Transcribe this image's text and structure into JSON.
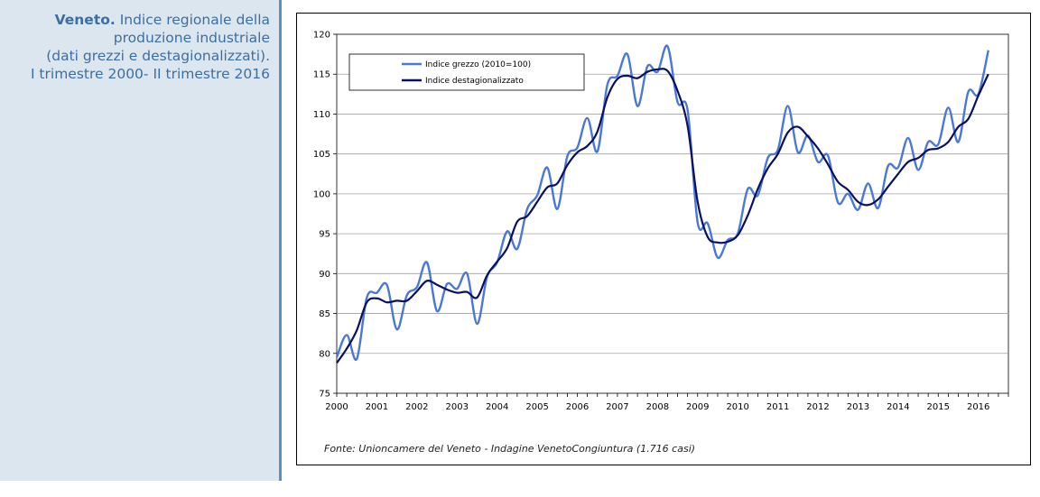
{
  "caption": {
    "title_bold": "Veneto.",
    "title_rest": " Indice regionale della",
    "line2": "produzione industriale",
    "line3": "(dati grezzi e destagionalizzati).",
    "line4": "I trimestre 2000- II trimestre 2016"
  },
  "colors": {
    "sidebar_bg": "#dce6ef",
    "caption_text": "#3a6fa6",
    "raw_series": "#4a78d8",
    "adjusted_series": "#0a0f63"
  },
  "chart_data": {
    "type": "line",
    "ylim": [
      75,
      120
    ],
    "yticks": [
      75,
      80,
      85,
      90,
      95,
      100,
      105,
      110,
      115,
      120
    ],
    "xlim": [
      2000,
      2016.75
    ],
    "xticks": [
      "2000",
      "2001",
      "2002",
      "2003",
      "2004",
      "2005",
      "2006",
      "2007",
      "2008",
      "2009",
      "2010",
      "2011",
      "2012",
      "2013",
      "2014",
      "2015",
      "2016"
    ],
    "grid": true,
    "legend_position": "top-left",
    "source": "Fonte: Unioncamere del Veneto - Indagine VenetoCongiuntura (1.716 casi)",
    "x_quarters": [
      "2000Q1",
      "2000Q2",
      "2000Q3",
      "2000Q4",
      "2001Q1",
      "2001Q2",
      "2001Q3",
      "2001Q4",
      "2002Q1",
      "2002Q2",
      "2002Q3",
      "2002Q4",
      "2003Q1",
      "2003Q2",
      "2003Q3",
      "2003Q4",
      "2004Q1",
      "2004Q2",
      "2004Q3",
      "2004Q4",
      "2005Q1",
      "2005Q2",
      "2005Q3",
      "2005Q4",
      "2006Q1",
      "2006Q2",
      "2006Q3",
      "2006Q4",
      "2007Q1",
      "2007Q2",
      "2007Q3",
      "2007Q4",
      "2008Q1",
      "2008Q2",
      "2008Q3",
      "2008Q4",
      "2009Q1",
      "2009Q2",
      "2009Q3",
      "2009Q4",
      "2010Q1",
      "2010Q2",
      "2010Q3",
      "2010Q4",
      "2011Q1",
      "2011Q2",
      "2011Q3",
      "2011Q4",
      "2012Q1",
      "2012Q2",
      "2012Q3",
      "2012Q4",
      "2013Q1",
      "2013Q2",
      "2013Q3",
      "2013Q4",
      "2014Q1",
      "2014Q2",
      "2014Q3",
      "2014Q4",
      "2015Q1",
      "2015Q2",
      "2015Q3",
      "2015Q4",
      "2016Q1",
      "2016Q2"
    ],
    "series": [
      {
        "name": "Indice grezzo (2010=100)",
        "color": "#4a78d8",
        "values": [
          79.5,
          82.3,
          79.3,
          87.0,
          87.6,
          88.6,
          83.0,
          87.3,
          88.3,
          91.4,
          85.3,
          88.7,
          88.1,
          90.0,
          83.7,
          89.6,
          91.4,
          95.3,
          93.1,
          98.1,
          99.8,
          103.3,
          98.1,
          104.7,
          105.8,
          109.5,
          105.3,
          113.7,
          114.8,
          117.5,
          111.0,
          116.0,
          115.3,
          118.5,
          111.5,
          110.5,
          96.4,
          96.3,
          92.0,
          94.2,
          95.0,
          100.6,
          99.8,
          104.5,
          105.5,
          111.0,
          105.2,
          107.3,
          104.0,
          104.8,
          98.9,
          100.0,
          98.0,
          101.3,
          98.2,
          103.5,
          103.3,
          107.0,
          103.0,
          106.5,
          106.2,
          110.8,
          106.5,
          112.8,
          112.5,
          118.0
        ]
      },
      {
        "name": "Indice destagionalizzato",
        "color": "#0a0f63",
        "values": [
          78.8,
          80.6,
          82.9,
          86.4,
          86.9,
          86.4,
          86.6,
          86.6,
          87.8,
          89.1,
          88.6,
          88.0,
          87.6,
          87.7,
          87.0,
          89.8,
          91.5,
          93.2,
          96.5,
          97.2,
          99.0,
          100.8,
          101.3,
          103.6,
          105.2,
          106.0,
          107.8,
          112.1,
          114.4,
          114.8,
          114.5,
          115.3,
          115.6,
          115.4,
          112.9,
          108.5,
          99.0,
          94.6,
          93.9,
          94.0,
          94.8,
          97.3,
          100.6,
          103.2,
          105.0,
          107.7,
          108.4,
          107.2,
          105.7,
          103.7,
          101.5,
          100.5,
          99.0,
          98.6,
          99.3,
          100.9,
          102.5,
          104.0,
          104.5,
          105.5,
          105.7,
          106.5,
          108.4,
          109.4,
          112.3,
          115.0
        ]
      }
    ]
  }
}
